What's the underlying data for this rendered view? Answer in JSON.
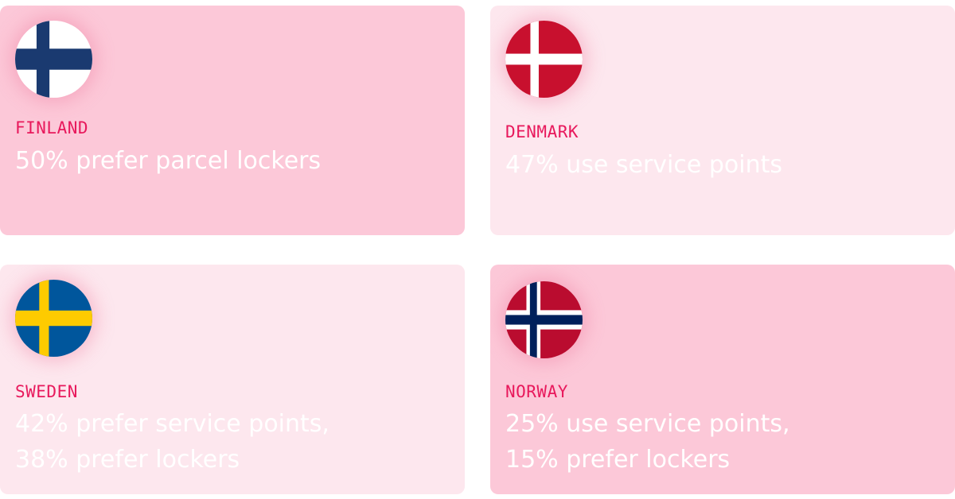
{
  "cards": [
    {
      "country": "FINLAND",
      "stat": "50% prefer parcel lockers",
      "flag_icon": "finland-flag-icon"
    },
    {
      "country": "DENMARK",
      "stat": "47% use service points",
      "flag_icon": "denmark-flag-icon"
    },
    {
      "country": "SWEDEN",
      "stat": "42% prefer service points,\n38% prefer lockers",
      "flag_icon": "sweden-flag-icon"
    },
    {
      "country": "NORWAY",
      "stat": "25% use service points,\n15% prefer lockers",
      "flag_icon": "norway-flag-icon"
    }
  ],
  "colors": {
    "card_strong": "#fcc8d8",
    "card_light": "#fde7ee",
    "country_label": "#e8195c",
    "stat_text": "#ffffff"
  }
}
